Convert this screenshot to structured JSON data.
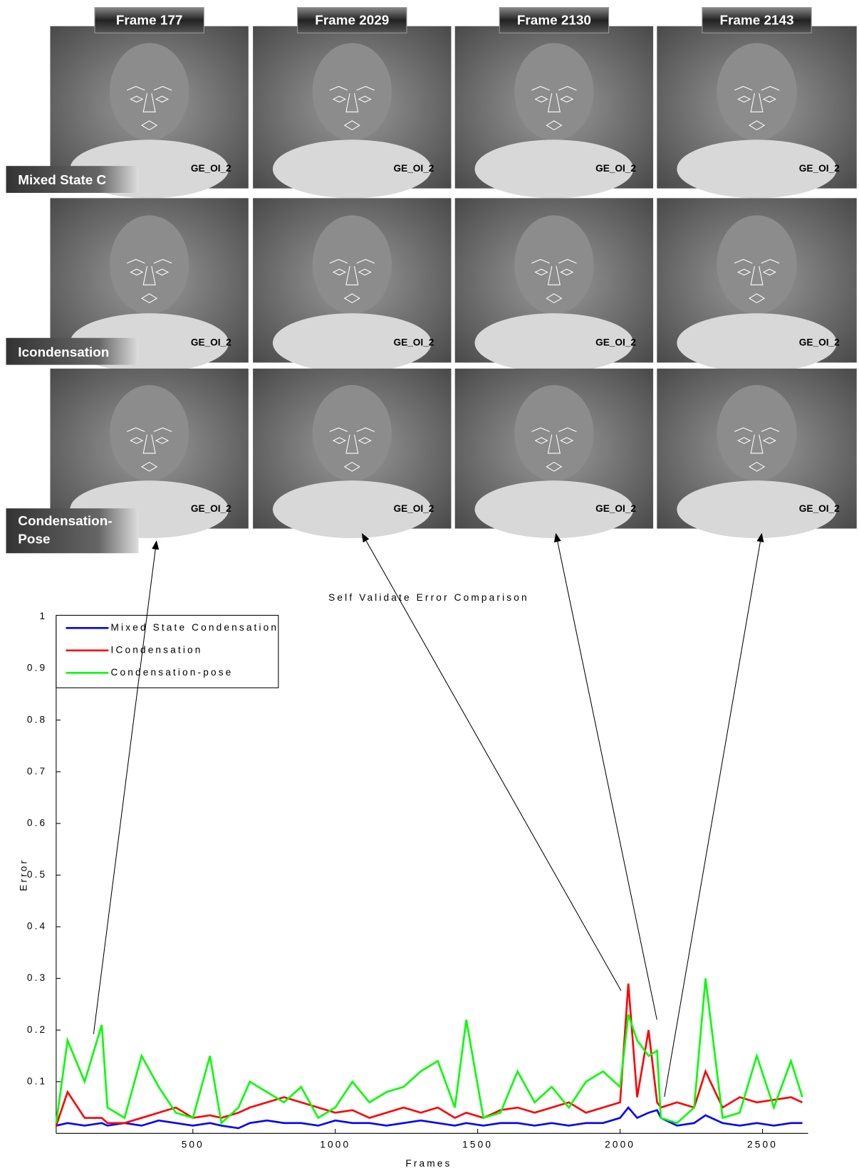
{
  "frame_labels": [
    "Frame 177",
    "Frame 2029",
    "Frame 2130",
    "Frame 2143"
  ],
  "row_labels": [
    "Mixed State C",
    "Icondensation",
    [
      "Condensation-",
      "Pose"
    ]
  ],
  "watermark": "GE_OI_2",
  "chart_data": {
    "type": "line",
    "title": "Self Validate Error Comparison",
    "x_label": "Frames",
    "y_label": "Error",
    "x": [
      20,
      60,
      120,
      180,
      200,
      260,
      320,
      380,
      440,
      500,
      560,
      600,
      660,
      700,
      760,
      820,
      880,
      940,
      1000,
      1060,
      1120,
      1180,
      1240,
      1300,
      1360,
      1420,
      1460,
      1520,
      1580,
      1640,
      1700,
      1760,
      1820,
      1880,
      1940,
      2000,
      2029,
      2060,
      2100,
      2130,
      2143,
      2200,
      2260,
      2300,
      2360,
      2420,
      2480,
      2540,
      2600,
      2640
    ],
    "series": [
      {
        "name": "Mixed State Condensation",
        "color": "#0000ff",
        "values": [
          0.015,
          0.02,
          0.015,
          0.02,
          0.015,
          0.02,
          0.015,
          0.025,
          0.02,
          0.015,
          0.02,
          0.015,
          0.01,
          0.02,
          0.025,
          0.02,
          0.02,
          0.015,
          0.025,
          0.02,
          0.02,
          0.015,
          0.02,
          0.025,
          0.02,
          0.015,
          0.02,
          0.015,
          0.02,
          0.02,
          0.015,
          0.02,
          0.015,
          0.02,
          0.02,
          0.03,
          0.05,
          0.03,
          0.04,
          0.045,
          0.03,
          0.015,
          0.02,
          0.035,
          0.02,
          0.015,
          0.02,
          0.015,
          0.02,
          0.02
        ]
      },
      {
        "name": "ICondensation",
        "color": "#ff0000",
        "values": [
          0.015,
          0.08,
          0.03,
          0.03,
          0.02,
          0.02,
          0.03,
          0.04,
          0.05,
          0.03,
          0.035,
          0.03,
          0.04,
          0.05,
          0.06,
          0.07,
          0.06,
          0.05,
          0.04,
          0.045,
          0.03,
          0.04,
          0.05,
          0.04,
          0.05,
          0.03,
          0.04,
          0.03,
          0.045,
          0.05,
          0.04,
          0.05,
          0.06,
          0.04,
          0.05,
          0.06,
          0.29,
          0.07,
          0.2,
          0.06,
          0.05,
          0.06,
          0.05,
          0.12,
          0.05,
          0.07,
          0.06,
          0.065,
          0.07,
          0.06
        ]
      },
      {
        "name": "Condensation-pose",
        "color": "#00ff00",
        "values": [
          0.02,
          0.18,
          0.1,
          0.21,
          0.05,
          0.03,
          0.15,
          0.09,
          0.04,
          0.03,
          0.15,
          0.02,
          0.05,
          0.1,
          0.08,
          0.06,
          0.09,
          0.03,
          0.05,
          0.1,
          0.06,
          0.08,
          0.09,
          0.12,
          0.14,
          0.05,
          0.22,
          0.03,
          0.04,
          0.12,
          0.06,
          0.09,
          0.05,
          0.1,
          0.12,
          0.09,
          0.23,
          0.18,
          0.15,
          0.16,
          0.03,
          0.02,
          0.05,
          0.3,
          0.03,
          0.04,
          0.15,
          0.05,
          0.14,
          0.07
        ]
      }
    ],
    "xlim": [
      20,
      2660
    ],
    "ylim": [
      0,
      1
    ],
    "xticks": [
      500,
      1000,
      1500,
      2000,
      2500
    ],
    "yticks": [
      0.1,
      0.2,
      0.3,
      0.4,
      0.5,
      0.6,
      0.7,
      0.8,
      0.9,
      1
    ],
    "legend": "upper left"
  }
}
